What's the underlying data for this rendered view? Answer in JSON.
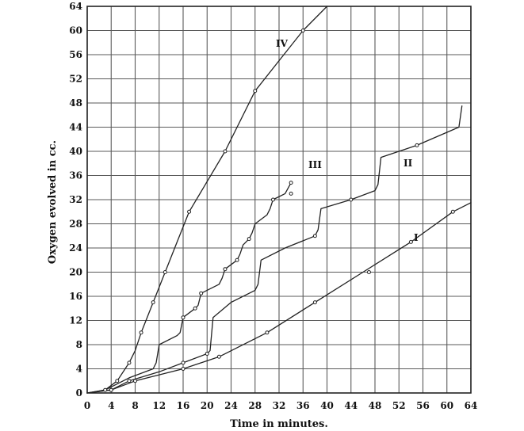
{
  "chart_data": {
    "type": "line",
    "title": "",
    "xlabel": "Time in minutes.",
    "ylabel": "Oxygen evolved in cc.",
    "xlim": [
      0,
      64
    ],
    "ylim": [
      0,
      64
    ],
    "xticks": [
      0,
      4,
      8,
      12,
      16,
      20,
      24,
      28,
      32,
      36,
      40,
      44,
      48,
      52,
      56,
      60,
      64
    ],
    "yticks": [
      0,
      4,
      8,
      12,
      16,
      20,
      24,
      28,
      32,
      36,
      40,
      44,
      48,
      52,
      56,
      60,
      64
    ],
    "grid": true,
    "series": [
      {
        "name": "I",
        "points": [
          [
            0,
            0
          ],
          [
            4,
            0.5
          ],
          [
            8,
            2
          ],
          [
            12,
            3
          ],
          [
            16,
            4
          ],
          [
            22,
            6
          ],
          [
            30,
            10
          ],
          [
            38,
            15
          ],
          [
            46,
            20
          ],
          [
            54,
            25
          ],
          [
            61,
            30
          ],
          [
            64,
            31.5
          ]
        ],
        "markers": [
          [
            4,
            0.5
          ],
          [
            8,
            2
          ],
          [
            16,
            4
          ],
          [
            22,
            6
          ],
          [
            30,
            10
          ],
          [
            38,
            15
          ],
          [
            47,
            20
          ],
          [
            54,
            25
          ],
          [
            61,
            30
          ]
        ]
      },
      {
        "name": "II",
        "points": [
          [
            0,
            0
          ],
          [
            4,
            0.5
          ],
          [
            7,
            2
          ],
          [
            12,
            3.5
          ],
          [
            16,
            5
          ],
          [
            20,
            6.5
          ],
          [
            20.5,
            7
          ],
          [
            21,
            12.5
          ],
          [
            24,
            15
          ],
          [
            28,
            17
          ],
          [
            28.5,
            18
          ],
          [
            29,
            22
          ],
          [
            33,
            24
          ],
          [
            38,
            26
          ],
          [
            38.5,
            27
          ],
          [
            39,
            30.5
          ],
          [
            44,
            32
          ],
          [
            48,
            33.5
          ],
          [
            48.5,
            34.5
          ],
          [
            49,
            39
          ],
          [
            55,
            41
          ],
          [
            62,
            44
          ],
          [
            62.5,
            47.5
          ]
        ],
        "markers": [
          [
            4,
            0.5
          ],
          [
            7,
            2
          ],
          [
            16,
            5
          ],
          [
            20,
            6.5
          ],
          [
            38,
            26
          ],
          [
            44,
            32
          ],
          [
            55,
            41
          ]
        ]
      },
      {
        "name": "III",
        "points": [
          [
            0,
            0
          ],
          [
            3,
            0.5
          ],
          [
            7,
            2.5
          ],
          [
            11,
            4
          ],
          [
            11.5,
            5
          ],
          [
            12,
            8
          ],
          [
            15,
            9.5
          ],
          [
            15.5,
            10
          ],
          [
            16,
            12.5
          ],
          [
            18,
            14
          ],
          [
            18.5,
            14.5
          ],
          [
            19,
            16.5
          ],
          [
            22,
            18
          ],
          [
            22.5,
            19
          ],
          [
            23,
            20.5
          ],
          [
            25,
            22
          ],
          [
            25.5,
            23
          ],
          [
            26,
            24.5
          ],
          [
            27,
            25.5
          ],
          [
            27.5,
            26.5
          ],
          [
            28,
            28
          ],
          [
            30,
            29.5
          ],
          [
            30.5,
            30.5
          ],
          [
            31,
            32
          ],
          [
            33,
            33
          ],
          [
            34,
            34.8
          ]
        ],
        "markers": [
          [
            16,
            12.5
          ],
          [
            18,
            14
          ],
          [
            19,
            16.5
          ],
          [
            23,
            20.5
          ],
          [
            25,
            22
          ],
          [
            27,
            25.5
          ],
          [
            31,
            32
          ],
          [
            34,
            33
          ],
          [
            34,
            34.8
          ]
        ]
      },
      {
        "name": "IV",
        "points": [
          [
            0,
            0
          ],
          [
            3,
            0.5
          ],
          [
            5,
            2
          ],
          [
            7,
            5
          ],
          [
            8,
            7
          ],
          [
            9,
            10
          ],
          [
            11,
            15
          ],
          [
            13,
            20
          ],
          [
            15,
            25
          ],
          [
            17,
            30
          ],
          [
            20,
            35
          ],
          [
            23,
            40
          ],
          [
            28,
            50
          ],
          [
            32,
            55
          ],
          [
            36,
            60
          ],
          [
            40,
            64
          ]
        ],
        "markers": [
          [
            3,
            0.5
          ],
          [
            5,
            2
          ],
          [
            7,
            5
          ],
          [
            9,
            10
          ],
          [
            11,
            15
          ],
          [
            13,
            20
          ],
          [
            17,
            30
          ],
          [
            23,
            40
          ],
          [
            28,
            50
          ],
          [
            36,
            60
          ]
        ]
      }
    ]
  },
  "series_labels": {
    "I": "I",
    "II": "II",
    "III": "III",
    "IV": "IV"
  }
}
